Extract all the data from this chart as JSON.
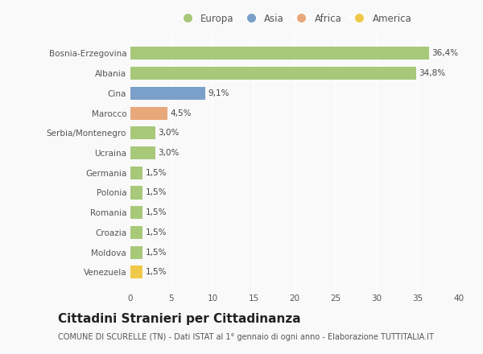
{
  "categories": [
    "Venezuela",
    "Moldova",
    "Croazia",
    "Romania",
    "Polonia",
    "Germania",
    "Ucraina",
    "Serbia/Montenegro",
    "Marocco",
    "Cina",
    "Albania",
    "Bosnia-Erzegovina"
  ],
  "values": [
    1.5,
    1.5,
    1.5,
    1.5,
    1.5,
    1.5,
    3.0,
    3.0,
    4.5,
    9.1,
    34.8,
    36.4
  ],
  "labels": [
    "1,5%",
    "1,5%",
    "1,5%",
    "1,5%",
    "1,5%",
    "1,5%",
    "3,0%",
    "3,0%",
    "4,5%",
    "9,1%",
    "34,8%",
    "36,4%"
  ],
  "bar_colors": [
    "#f0c94a",
    "#a8c87a",
    "#a8c87a",
    "#a8c87a",
    "#a8c87a",
    "#a8c87a",
    "#a8c87a",
    "#a8c87a",
    "#e8a87a",
    "#7a9fc8",
    "#a8c87a",
    "#a8c87a"
  ],
  "legend_labels": [
    "Europa",
    "Asia",
    "Africa",
    "America"
  ],
  "legend_colors": [
    "#a8c87a",
    "#7a9fc8",
    "#e8a87a",
    "#f0c94a"
  ],
  "title": "Cittadini Stranieri per Cittadinanza",
  "subtitle": "COMUNE DI SCURELLE (TN) - Dati ISTAT al 1° gennaio di ogni anno - Elaborazione TUTTITALIA.IT",
  "xlim": [
    0,
    40
  ],
  "xticks": [
    0,
    5,
    10,
    15,
    20,
    25,
    30,
    35,
    40
  ],
  "background_color": "#f9f9f9",
  "grid_color": "#ffffff",
  "title_fontsize": 11,
  "subtitle_fontsize": 7,
  "label_fontsize": 7.5,
  "tick_fontsize": 7.5,
  "legend_fontsize": 8.5
}
